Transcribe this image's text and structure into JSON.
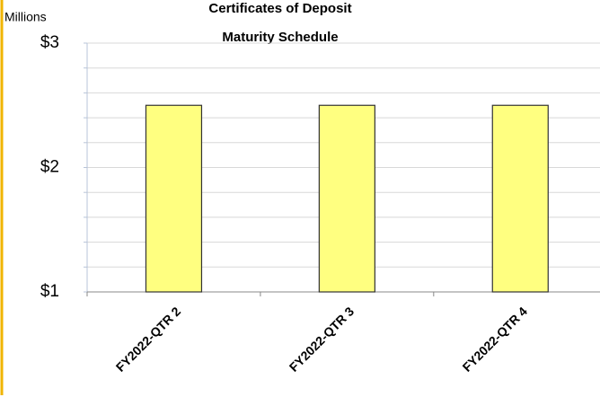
{
  "chart_data": {
    "type": "bar",
    "title": [
      "Certificates of Deposit",
      "Maturity Schedule"
    ],
    "y_unit_label": "Millions",
    "categories": [
      "FY2022-QTR 2",
      "FY2022-QTR 3",
      "FY2022-QTR 4"
    ],
    "values": [
      2.5,
      2.5,
      2.5
    ],
    "color": "#ffff80",
    "ylim": [
      1,
      3
    ],
    "yticks": [
      {
        "value": 1,
        "label": "$1"
      },
      {
        "value": 2,
        "label": "$2"
      },
      {
        "value": 3,
        "label": "$3"
      }
    ],
    "minor_yticks": [
      1.2,
      1.4,
      1.6,
      1.8,
      2.2,
      2.4,
      2.6,
      2.8
    ],
    "grid": true
  }
}
